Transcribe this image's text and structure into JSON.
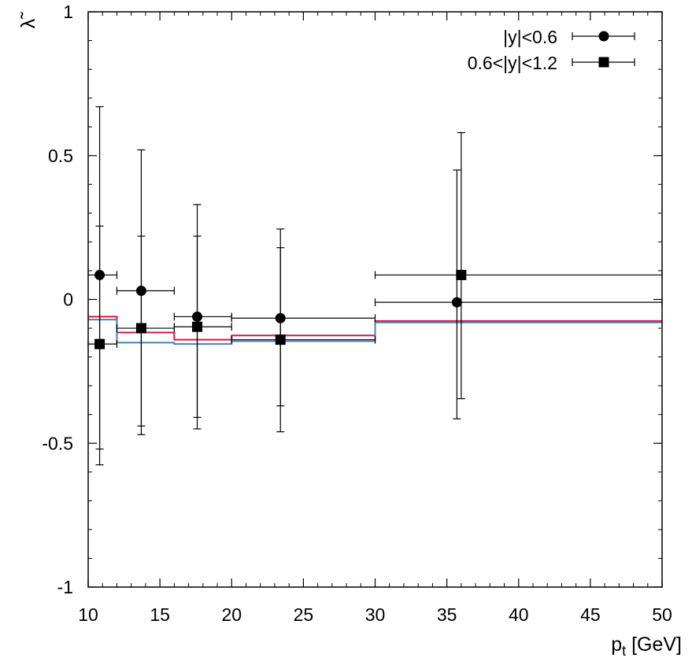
{
  "chart_data": {
    "type": "scatter",
    "title": "",
    "xlabel": "p",
    "xlabel_sub": "t",
    "xlabel_unit": " [GeV]",
    "ylabel": "λ̃",
    "xlim": [
      10,
      50
    ],
    "ylim": [
      -1,
      1
    ],
    "x_ticks": [
      10,
      15,
      20,
      25,
      30,
      35,
      40,
      45,
      50
    ],
    "x_tick_labels": [
      "10",
      "15",
      "20",
      "25",
      "30",
      "35",
      "40",
      "45",
      "50"
    ],
    "y_ticks": [
      -1,
      -0.5,
      0,
      0.5,
      1
    ],
    "y_tick_labels": [
      "-1",
      "-0.5",
      "0",
      "0.5",
      "1"
    ],
    "legend_position": "top-right",
    "series": [
      {
        "name": "|y|<0.6",
        "marker": "circle",
        "color": "#000000",
        "points": [
          {
            "x": 10.8,
            "y": 0.085,
            "xlo": 10,
            "xhi": 12,
            "ylo": -0.52,
            "yhi": 0.67
          },
          {
            "x": 13.7,
            "y": 0.03,
            "xlo": 12,
            "xhi": 16,
            "ylo": -0.44,
            "yhi": 0.52
          },
          {
            "x": 17.6,
            "y": -0.06,
            "xlo": 16,
            "xhi": 20,
            "ylo": -0.45,
            "yhi": 0.33
          },
          {
            "x": 23.4,
            "y": -0.065,
            "xlo": 20,
            "xhi": 30,
            "ylo": -0.37,
            "yhi": 0.245
          },
          {
            "x": 35.7,
            "y": -0.01,
            "xlo": 30,
            "xhi": 50,
            "ylo": -0.415,
            "yhi": 0.45
          }
        ]
      },
      {
        "name": "0.6<|y|<1.2",
        "marker": "square",
        "color": "#000000",
        "points": [
          {
            "x": 10.8,
            "y": -0.155,
            "xlo": 10,
            "xhi": 12,
            "ylo": -0.575,
            "yhi": 0.255
          },
          {
            "x": 13.7,
            "y": -0.1,
            "xlo": 12,
            "xhi": 16,
            "ylo": -0.47,
            "yhi": 0.22
          },
          {
            "x": 17.6,
            "y": -0.095,
            "xlo": 16,
            "xhi": 20,
            "ylo": -0.41,
            "yhi": 0.22
          },
          {
            "x": 23.4,
            "y": -0.14,
            "xlo": 20,
            "xhi": 30,
            "ylo": -0.46,
            "yhi": 0.18
          },
          {
            "x": 36.0,
            "y": 0.085,
            "xlo": 30,
            "xhi": 50,
            "ylo": -0.345,
            "yhi": 0.58
          }
        ]
      }
    ],
    "theory_curves": [
      {
        "name": "prediction-red",
        "color": "#d6173c",
        "bins": [
          {
            "x0": 10,
            "x1": 12,
            "y": -0.06
          },
          {
            "x0": 12,
            "x1": 16,
            "y": -0.115
          },
          {
            "x0": 16,
            "x1": 20,
            "y": -0.14
          },
          {
            "x0": 20,
            "x1": 30,
            "y": -0.125
          },
          {
            "x0": 30,
            "x1": 50,
            "y": -0.075
          }
        ]
      },
      {
        "name": "prediction-blue",
        "color": "#4a7fbf",
        "bins": [
          {
            "x0": 10,
            "x1": 12,
            "y": -0.07
          },
          {
            "x0": 12,
            "x1": 16,
            "y": -0.15
          },
          {
            "x0": 16,
            "x1": 20,
            "y": -0.155
          },
          {
            "x0": 20,
            "x1": 30,
            "y": -0.145
          },
          {
            "x0": 30,
            "x1": 50,
            "y": -0.08
          }
        ]
      }
    ]
  }
}
